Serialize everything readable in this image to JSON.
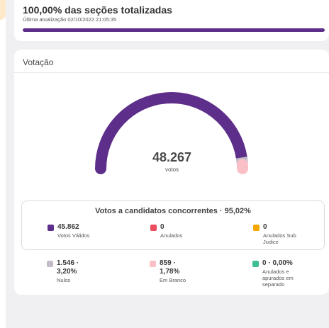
{
  "summary": {
    "title": "100,00% das seções totalizadas",
    "updated": "Última atualização 02/10/2022 21:05:35",
    "progress_fraction": 1.0,
    "progress_color": "#5e2f8a"
  },
  "voting": {
    "header": "Votação",
    "total": "48.267",
    "total_label": "votos",
    "gauge": {
      "segments": [
        {
          "name": "valid",
          "fraction": 0.9502,
          "color": "#5e2f8a"
        },
        {
          "name": "null",
          "fraction": 0.032,
          "color": "#c3bcc8"
        },
        {
          "name": "blank",
          "fraction": 0.0178,
          "color": "#fbbfc8"
        }
      ]
    },
    "candidates": {
      "title": "Votos a candidatos concorrentes · 95,02%",
      "items": [
        {
          "value": "45.862",
          "label": "Votos Válidos",
          "color": "#5e2f8a"
        },
        {
          "value": "0",
          "label": "Anulados",
          "color": "#ec4d5e"
        },
        {
          "value": "0",
          "label_lines": [
            "Anulados Sub",
            "Judice"
          ],
          "color": "#f5a800"
        }
      ]
    },
    "others": [
      {
        "value_lines": [
          "1.546 ·",
          "3,20%"
        ],
        "label_lines": [
          "Nulos"
        ],
        "color": "#c3bcc8"
      },
      {
        "value_lines": [
          "859 ·",
          "1,78%"
        ],
        "label_lines": [
          "Em Branco"
        ],
        "color": "#fbbfc8"
      },
      {
        "value_lines": [
          "0 · 0,00%"
        ],
        "label_lines": [
          "Anulados e",
          "apurados em",
          "separado"
        ],
        "color": "#3fbf91"
      }
    ]
  }
}
